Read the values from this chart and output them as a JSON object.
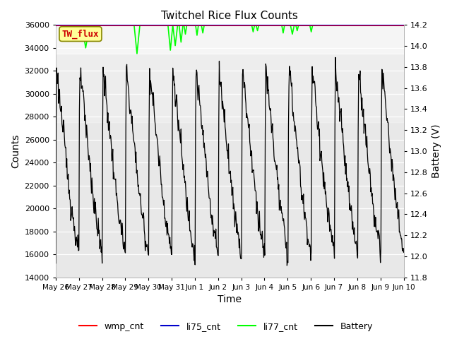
{
  "title": "Twitchel Rice Flux Counts",
  "xlabel": "Time",
  "ylabel_left": "Counts",
  "ylabel_right": "Battery (V)",
  "ylim_left": [
    14000,
    36000
  ],
  "ylim_right": [
    11.8,
    14.2
  ],
  "yticks_left": [
    14000,
    16000,
    18000,
    20000,
    22000,
    24000,
    26000,
    28000,
    30000,
    32000,
    34000,
    36000
  ],
  "yticks_right": [
    11.8,
    12.0,
    12.2,
    12.4,
    12.6,
    12.8,
    13.0,
    13.2,
    13.4,
    13.6,
    13.8,
    14.0,
    14.2
  ],
  "background_color": "#ffffff",
  "plot_bg_color": "#e8e8e8",
  "shaded_region_light": [
    33500,
    36500
  ],
  "shaded_region_main": [
    27500,
    33500
  ],
  "annotation_label": "TW_flux",
  "annotation_color": "#cc0000",
  "annotation_bg": "#ffff99",
  "li77_line_color": "#00ff00",
  "battery_line_color": "#000000",
  "wmp_line_color": "#ff0000",
  "li75_line_color": "#0000cc",
  "legend_entries": [
    "wmp_cnt",
    "li75_cnt",
    "li77_cnt",
    "Battery"
  ],
  "xtick_labels": [
    "May 26",
    "May 27",
    "May 28",
    "May 29",
    "May 30",
    "May 31",
    "Jun 1",
    "Jun 2",
    "Jun 3",
    "Jun 4",
    "Jun 5",
    "Jun 6",
    "Jun 7",
    "Jun 8",
    "Jun 9",
    "Jun 10"
  ],
  "figsize": [
    6.4,
    4.8
  ],
  "dpi": 100
}
